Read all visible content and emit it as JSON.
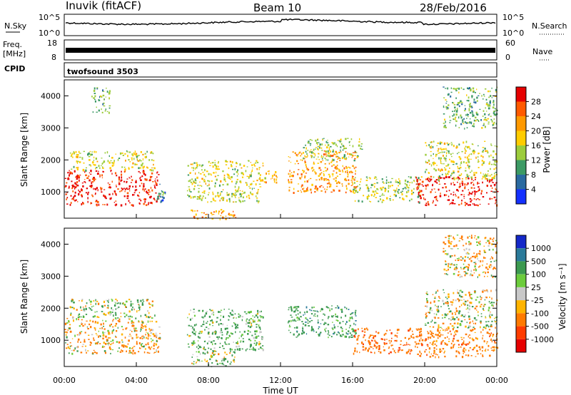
{
  "header": {
    "station": "Inuvik (fitACF)",
    "beam": "Beam 10",
    "date": "28/Feb/2016"
  },
  "panels": {
    "nsky": {
      "label": "N.Sky",
      "right_label": "N.Search",
      "ticks_left": [
        "10^5",
        "10^0"
      ],
      "ticks_right": [
        "10^5",
        "10^0"
      ]
    },
    "freq": {
      "label": "Freq.",
      "unit": "[MHz]",
      "right_label": "Nave",
      "ticks_left": [
        "18",
        "8"
      ],
      "ticks_right": [
        "60",
        "0"
      ]
    },
    "cpid": {
      "label": "CPID",
      "value": "twofsound 3503"
    }
  },
  "chart_data": [
    {
      "type": "heatmap",
      "name": "power",
      "ylabel": "Slant Range [km]",
      "ylim": [
        180,
        4500
      ],
      "yticks": [
        "4000",
        "3000",
        "2000",
        "1000"
      ],
      "xlim": [
        "00:00",
        "24:00"
      ],
      "colorbar": {
        "label": "Power [dB]",
        "ticks": [
          "28",
          "24",
          "20",
          "16",
          "12",
          "8",
          "4"
        ],
        "colors": [
          "#e60000",
          "#ff5a00",
          "#ff9900",
          "#ffcc00",
          "#9ccc3c",
          "#3c9a64",
          "#2a6aa0",
          "#1430ff"
        ]
      },
      "echo_regions": [
        {
          "t": [
            0.0,
            5.3
          ],
          "range_km": [
            600,
            1700
          ],
          "power_db": 28
        },
        {
          "t": [
            0.3,
            5.0
          ],
          "range_km": [
            1700,
            2300
          ],
          "power_db": 14
        },
        {
          "t": [
            1.5,
            2.5
          ],
          "range_km": [
            3500,
            4300
          ],
          "power_db": 10
        },
        {
          "t": [
            5.0,
            5.6
          ],
          "range_km": [
            700,
            1300
          ],
          "power_db": 6
        },
        {
          "t": [
            6.8,
            11.0
          ],
          "range_km": [
            700,
            2000
          ],
          "power_db": 14
        },
        {
          "t": [
            7.0,
            9.5
          ],
          "range_km": [
            180,
            500
          ],
          "power_db": 20
        },
        {
          "t": [
            10.8,
            11.8
          ],
          "range_km": [
            1300,
            1700
          ],
          "power_db": 18
        },
        {
          "t": [
            12.4,
            16.2
          ],
          "range_km": [
            1000,
            2300
          ],
          "power_db": 20
        },
        {
          "t": [
            13.2,
            16.5
          ],
          "range_km": [
            2000,
            2700
          ],
          "power_db": 12
        },
        {
          "t": [
            16.0,
            19.8
          ],
          "range_km": [
            700,
            1500
          ],
          "power_db": 12
        },
        {
          "t": [
            19.5,
            24.0
          ],
          "range_km": [
            600,
            1500
          ],
          "power_db": 28
        },
        {
          "t": [
            20.0,
            24.0
          ],
          "range_km": [
            1400,
            2600
          ],
          "power_db": 14
        },
        {
          "t": [
            21.0,
            24.0
          ],
          "range_km": [
            3000,
            4300
          ],
          "power_db": 10
        }
      ]
    },
    {
      "type": "heatmap",
      "name": "velocity",
      "ylabel": "Slant Range [km]",
      "ylim": [
        180,
        4500
      ],
      "yticks": [
        "4000",
        "3000",
        "2000",
        "1000"
      ],
      "xlim": [
        "00:00",
        "24:00"
      ],
      "xticks": [
        "00:00",
        "04:00",
        "08:00",
        "12:00",
        "16:00",
        "20:00",
        "00:00"
      ],
      "xlabel": "Time UT",
      "colorbar": {
        "label": "Velocity [m s⁻¹]",
        "ticks": [
          "1000",
          "500",
          "100",
          "25",
          "-25",
          "-100",
          "-500",
          "-1000"
        ],
        "colors": [
          "#1428c8",
          "#2a7a9a",
          "#3c9a50",
          "#6ccc3c",
          "#c8c8c8",
          "#ffb400",
          "#ff7a00",
          "#ff3c00",
          "#e60000"
        ]
      },
      "echo_regions": [
        {
          "t": [
            0.0,
            5.3
          ],
          "range_km": [
            600,
            1700
          ],
          "velocity_ms": -100
        },
        {
          "t": [
            0.3,
            5.0
          ],
          "range_km": [
            1700,
            2300
          ],
          "velocity_ms": 100
        },
        {
          "t": [
            6.8,
            11.0
          ],
          "range_km": [
            700,
            2000
          ],
          "velocity_ms": 200
        },
        {
          "t": [
            7.0,
            9.5
          ],
          "range_km": [
            180,
            700
          ],
          "velocity_ms": 100
        },
        {
          "t": [
            12.4,
            16.2
          ],
          "range_km": [
            1100,
            2100
          ],
          "velocity_ms": 300
        },
        {
          "t": [
            16.0,
            19.8
          ],
          "range_km": [
            600,
            1400
          ],
          "velocity_ms": -400
        },
        {
          "t": [
            19.5,
            24.0
          ],
          "range_km": [
            500,
            1400
          ],
          "velocity_ms": -300
        },
        {
          "t": [
            20.0,
            24.0
          ],
          "range_km": [
            1400,
            2600
          ],
          "velocity_ms": 0
        },
        {
          "t": [
            21.0,
            24.0
          ],
          "range_km": [
            3000,
            4300
          ],
          "velocity_ms": -100
        }
      ]
    }
  ]
}
